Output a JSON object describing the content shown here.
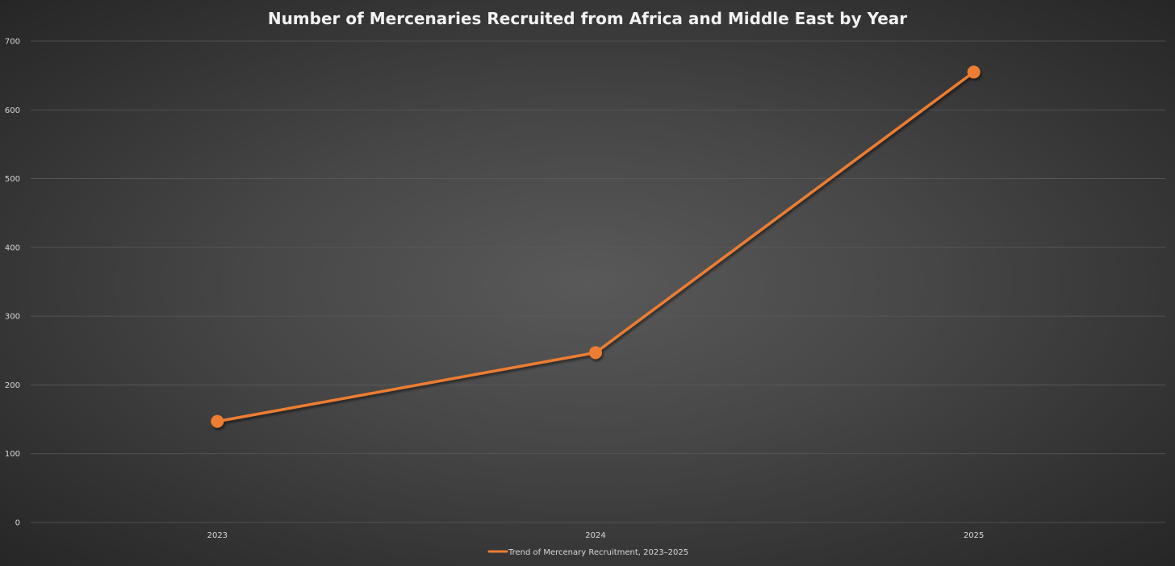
{
  "chart_data": {
    "type": "line",
    "title": "Number of Mercenaries Recruited from Africa and Middle East by Year",
    "xlabel": "",
    "ylabel": "",
    "categories": [
      "2023",
      "2024",
      "2025"
    ],
    "series": [
      {
        "name": "Trend of Mercenary Recruitment, 2023–2025",
        "values": [
          147,
          247,
          655
        ],
        "color": "#ed7d31"
      }
    ],
    "ylim": [
      0,
      700
    ],
    "yticks": [
      0,
      100,
      200,
      300,
      400,
      500,
      600,
      700
    ],
    "grid": true,
    "legend_position": "bottom"
  },
  "colors": {
    "background": "#404040",
    "gridline": "#5a5a5a",
    "text": "#d9d9d9",
    "title": "#f2f2f2",
    "series": "#ed7d31"
  }
}
